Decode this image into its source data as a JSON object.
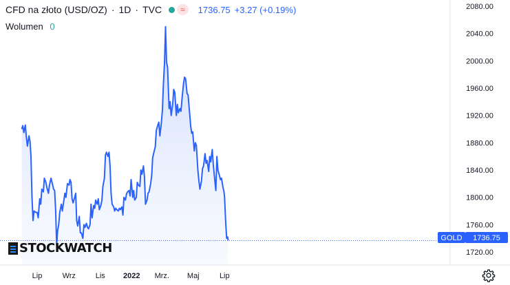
{
  "legend": {
    "symbol": "CFD na złoto (USD/OZ)",
    "interval": "1D",
    "source": "TVC",
    "price": "1736.75",
    "change": "+3.27 (+0.19%)"
  },
  "volume": {
    "label": "Wolumen",
    "value": "0"
  },
  "price_tag": {
    "label": "GOLD",
    "value": "1736.75"
  },
  "logo_text": "STOCKWATCH",
  "colors": {
    "line": "#2962ff",
    "fill_top": "#c7d5fb",
    "accent": "#2962ff",
    "status_green": "#26a69a",
    "status_red": "#ef5350"
  },
  "icons": [
    "gear-icon"
  ],
  "chart_data": {
    "type": "area",
    "title": "CFD na złoto (USD/OZ)",
    "xlabel": "",
    "ylabel": "",
    "ylim": [
      1700,
      2080
    ],
    "grid": false,
    "y_ticks": [
      "2080.00",
      "2040.00",
      "2000.00",
      "1960.00",
      "1920.00",
      "1880.00",
      "1840.00",
      "1800.00",
      "1760.00",
      "1720.00"
    ],
    "x_ticks": [
      {
        "label": "Lip",
        "date": "2021-07-01"
      },
      {
        "label": "Wrz",
        "date": "2021-09-01"
      },
      {
        "label": "Lis",
        "date": "2021-11-01"
      },
      {
        "label": "2022",
        "date": "2022-01-01"
      },
      {
        "label": "Mrz.",
        "date": "2022-03-01"
      },
      {
        "label": "Maj",
        "date": "2022-05-01"
      },
      {
        "label": "Lip",
        "date": "2022-07-01"
      }
    ],
    "series": [
      {
        "points": [
          [
            "2021-06-01",
            1900
          ],
          [
            "2021-06-03",
            1905
          ],
          [
            "2021-06-05",
            1895
          ],
          [
            "2021-06-08",
            1906
          ],
          [
            "2021-06-10",
            1888
          ],
          [
            "2021-06-12",
            1875
          ],
          [
            "2021-06-15",
            1890
          ],
          [
            "2021-06-17",
            1882
          ],
          [
            "2021-06-19",
            1860
          ],
          [
            "2021-06-21",
            1800
          ],
          [
            "2021-06-23",
            1766
          ],
          [
            "2021-06-25",
            1780
          ],
          [
            "2021-06-28",
            1778
          ],
          [
            "2021-07-01",
            1778
          ],
          [
            "2021-07-03",
            1770
          ],
          [
            "2021-07-06",
            1798
          ],
          [
            "2021-07-08",
            1790
          ],
          [
            "2021-07-10",
            1812
          ],
          [
            "2021-07-13",
            1808
          ],
          [
            "2021-07-15",
            1828
          ],
          [
            "2021-07-18",
            1822
          ],
          [
            "2021-07-20",
            1814
          ],
          [
            "2021-07-23",
            1806
          ],
          [
            "2021-07-25",
            1818
          ],
          [
            "2021-07-28",
            1828
          ],
          [
            "2021-07-30",
            1822
          ],
          [
            "2021-08-02",
            1812
          ],
          [
            "2021-08-04",
            1810
          ],
          [
            "2021-08-06",
            1780
          ],
          [
            "2021-08-08",
            1730
          ],
          [
            "2021-08-10",
            1752
          ],
          [
            "2021-08-12",
            1760
          ],
          [
            "2021-08-14",
            1778
          ],
          [
            "2021-08-17",
            1790
          ],
          [
            "2021-08-19",
            1780
          ],
          [
            "2021-08-21",
            1790
          ],
          [
            "2021-08-24",
            1806
          ],
          [
            "2021-08-26",
            1800
          ],
          [
            "2021-08-29",
            1820
          ],
          [
            "2021-09-01",
            1818
          ],
          [
            "2021-09-03",
            1826
          ],
          [
            "2021-09-05",
            1822
          ],
          [
            "2021-09-07",
            1798
          ],
          [
            "2021-09-09",
            1792
          ],
          [
            "2021-09-12",
            1800
          ],
          [
            "2021-09-14",
            1806
          ],
          [
            "2021-09-16",
            1766
          ],
          [
            "2021-09-18",
            1758
          ],
          [
            "2021-09-21",
            1772
          ],
          [
            "2021-09-23",
            1748
          ],
          [
            "2021-09-25",
            1748
          ],
          [
            "2021-09-28",
            1740
          ],
          [
            "2021-09-30",
            1760
          ],
          [
            "2021-10-02",
            1756
          ],
          [
            "2021-10-05",
            1762
          ],
          [
            "2021-10-07",
            1756
          ],
          [
            "2021-10-09",
            1754
          ],
          [
            "2021-10-12",
            1760
          ],
          [
            "2021-10-14",
            1790
          ],
          [
            "2021-10-16",
            1770
          ],
          [
            "2021-10-19",
            1788
          ],
          [
            "2021-10-21",
            1784
          ],
          [
            "2021-10-23",
            1796
          ],
          [
            "2021-10-26",
            1790
          ],
          [
            "2021-10-28",
            1798
          ],
          [
            "2021-10-30",
            1782
          ],
          [
            "2021-11-02",
            1788
          ],
          [
            "2021-11-04",
            1795
          ],
          [
            "2021-11-06",
            1816
          ],
          [
            "2021-11-09",
            1828
          ],
          [
            "2021-11-11",
            1862
          ],
          [
            "2021-11-13",
            1866
          ],
          [
            "2021-11-16",
            1860
          ],
          [
            "2021-11-18",
            1866
          ],
          [
            "2021-11-20",
            1846
          ],
          [
            "2021-11-22",
            1806
          ],
          [
            "2021-11-24",
            1790
          ],
          [
            "2021-11-27",
            1786
          ],
          [
            "2021-11-29",
            1780
          ],
          [
            "2021-12-01",
            1784
          ],
          [
            "2021-12-03",
            1782
          ],
          [
            "2021-12-06",
            1780
          ],
          [
            "2021-12-08",
            1784
          ],
          [
            "2021-12-10",
            1782
          ],
          [
            "2021-12-13",
            1786
          ],
          [
            "2021-12-15",
            1774
          ],
          [
            "2021-12-17",
            1800
          ],
          [
            "2021-12-20",
            1796
          ],
          [
            "2021-12-22",
            1805
          ],
          [
            "2021-12-24",
            1808
          ],
          [
            "2021-12-27",
            1810
          ],
          [
            "2021-12-29",
            1802
          ],
          [
            "2021-12-31",
            1826
          ],
          [
            "2022-01-03",
            1800
          ],
          [
            "2022-01-05",
            1810
          ],
          [
            "2022-01-07",
            1796
          ],
          [
            "2022-01-10",
            1800
          ],
          [
            "2022-01-12",
            1822
          ],
          [
            "2022-01-14",
            1818
          ],
          [
            "2022-01-17",
            1816
          ],
          [
            "2022-01-19",
            1840
          ],
          [
            "2022-01-21",
            1834
          ],
          [
            "2022-01-24",
            1846
          ],
          [
            "2022-01-26",
            1830
          ],
          [
            "2022-01-28",
            1790
          ],
          [
            "2022-01-31",
            1796
          ],
          [
            "2022-02-02",
            1806
          ],
          [
            "2022-02-04",
            1808
          ],
          [
            "2022-02-07",
            1820
          ],
          [
            "2022-02-09",
            1832
          ],
          [
            "2022-02-11",
            1858
          ],
          [
            "2022-02-14",
            1868
          ],
          [
            "2022-02-16",
            1874
          ],
          [
            "2022-02-18",
            1898
          ],
          [
            "2022-02-21",
            1906
          ],
          [
            "2022-02-23",
            1910
          ],
          [
            "2022-02-25",
            1890
          ],
          [
            "2022-02-28",
            1910
          ],
          [
            "2022-03-02",
            1928
          ],
          [
            "2022-03-04",
            1968
          ],
          [
            "2022-03-06",
            1996
          ],
          [
            "2022-03-08",
            2050
          ],
          [
            "2022-03-10",
            1998
          ],
          [
            "2022-03-12",
            1990
          ],
          [
            "2022-03-15",
            1930
          ],
          [
            "2022-03-17",
            1940
          ],
          [
            "2022-03-19",
            1920
          ],
          [
            "2022-03-22",
            1936
          ],
          [
            "2022-03-24",
            1958
          ],
          [
            "2022-03-26",
            1954
          ],
          [
            "2022-03-29",
            1920
          ],
          [
            "2022-03-31",
            1936
          ],
          [
            "2022-04-02",
            1924
          ],
          [
            "2022-04-05",
            1930
          ],
          [
            "2022-04-07",
            1926
          ],
          [
            "2022-04-09",
            1944
          ],
          [
            "2022-04-12",
            1966
          ],
          [
            "2022-04-14",
            1976
          ],
          [
            "2022-04-16",
            1974
          ],
          [
            "2022-04-19",
            1952
          ],
          [
            "2022-04-21",
            1950
          ],
          [
            "2022-04-23",
            1932
          ],
          [
            "2022-04-26",
            1904
          ],
          [
            "2022-04-28",
            1894
          ],
          [
            "2022-04-30",
            1896
          ],
          [
            "2022-05-03",
            1868
          ],
          [
            "2022-05-05",
            1880
          ],
          [
            "2022-05-07",
            1876
          ],
          [
            "2022-05-10",
            1840
          ],
          [
            "2022-05-12",
            1824
          ],
          [
            "2022-05-14",
            1812
          ],
          [
            "2022-05-17",
            1824
          ],
          [
            "2022-05-19",
            1842
          ],
          [
            "2022-05-21",
            1846
          ],
          [
            "2022-05-24",
            1864
          ],
          [
            "2022-05-26",
            1850
          ],
          [
            "2022-05-28",
            1854
          ],
          [
            "2022-05-31",
            1838
          ],
          [
            "2022-06-02",
            1860
          ],
          [
            "2022-06-04",
            1852
          ],
          [
            "2022-06-07",
            1870
          ],
          [
            "2022-06-09",
            1848
          ],
          [
            "2022-06-11",
            1832
          ],
          [
            "2022-06-14",
            1810
          ],
          [
            "2022-06-16",
            1860
          ],
          [
            "2022-06-18",
            1840
          ],
          [
            "2022-06-21",
            1832
          ],
          [
            "2022-06-23",
            1826
          ],
          [
            "2022-06-25",
            1828
          ],
          [
            "2022-06-28",
            1814
          ],
          [
            "2022-06-30",
            1808
          ],
          [
            "2022-07-01",
            1800
          ],
          [
            "2022-07-03",
            1766
          ],
          [
            "2022-07-05",
            1740
          ],
          [
            "2022-07-07",
            1742
          ],
          [
            "2022-07-08",
            1736.75
          ]
        ]
      }
    ]
  }
}
